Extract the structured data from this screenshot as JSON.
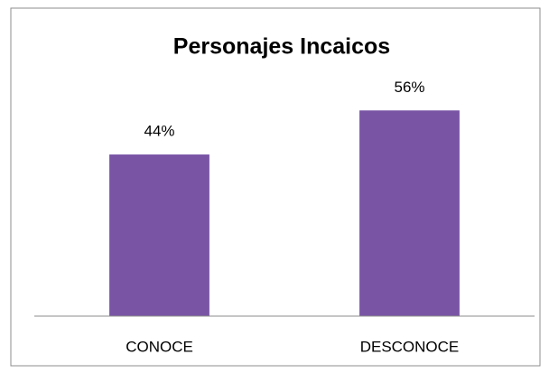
{
  "chart_data": {
    "type": "bar",
    "title": "Personajes Incaicos",
    "categories": [
      "CONOCE",
      "DESCONOCE"
    ],
    "values": [
      44,
      56
    ],
    "value_labels": [
      "44%",
      "56%"
    ],
    "color": "#7954a5",
    "ylim": [
      0,
      60
    ]
  }
}
